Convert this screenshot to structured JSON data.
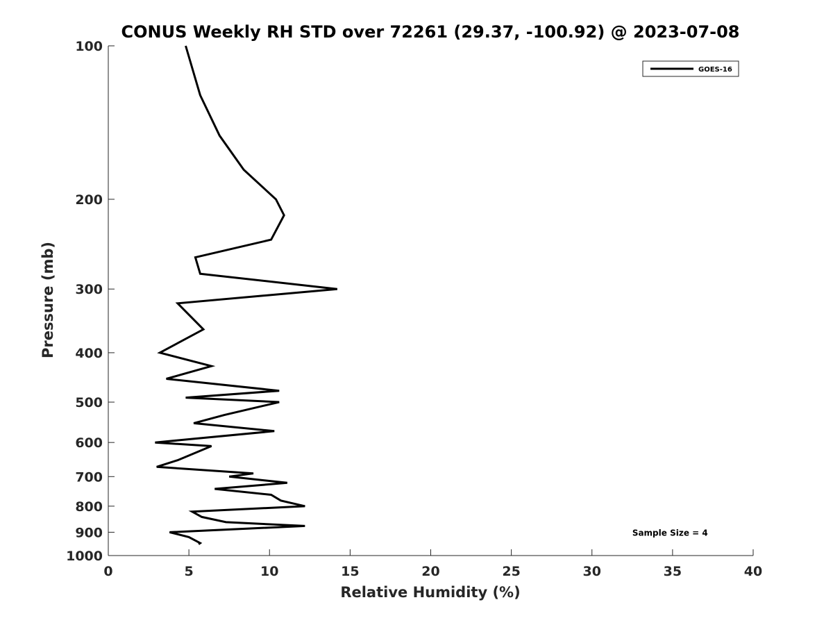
{
  "chart_data": {
    "type": "line",
    "title": "CONUS Weekly RH STD over 72261 (29.37, -100.92) @ 2023-07-08",
    "xlabel": "Relative Humidity (%)",
    "ylabel": "Pressure (mb)",
    "xlim": [
      0,
      40
    ],
    "ylim": [
      100,
      1000
    ],
    "y_scale": "log",
    "y_reversed": true,
    "x_ticks": [
      0,
      5,
      10,
      15,
      20,
      25,
      30,
      35,
      40
    ],
    "y_ticks": [
      100,
      200,
      300,
      400,
      500,
      600,
      700,
      800,
      900,
      1000
    ],
    "grid": false,
    "legend_position": "top-right",
    "series": [
      {
        "name": "GOES-16",
        "color": "#000000",
        "points": [
          {
            "x": 4.8,
            "y": 100
          },
          {
            "x": 5.7,
            "y": 125
          },
          {
            "x": 6.9,
            "y": 150
          },
          {
            "x": 8.4,
            "y": 175
          },
          {
            "x": 10.4,
            "y": 200
          },
          {
            "x": 10.9,
            "y": 215
          },
          {
            "x": 10.1,
            "y": 240
          },
          {
            "x": 5.4,
            "y": 260
          },
          {
            "x": 5.7,
            "y": 280
          },
          {
            "x": 14.2,
            "y": 300
          },
          {
            "x": 4.3,
            "y": 320
          },
          {
            "x": 5.9,
            "y": 360
          },
          {
            "x": 3.2,
            "y": 400
          },
          {
            "x": 6.4,
            "y": 425
          },
          {
            "x": 3.6,
            "y": 450
          },
          {
            "x": 10.6,
            "y": 475
          },
          {
            "x": 4.8,
            "y": 490
          },
          {
            "x": 10.6,
            "y": 500
          },
          {
            "x": 7.2,
            "y": 530
          },
          {
            "x": 5.3,
            "y": 550
          },
          {
            "x": 10.3,
            "y": 570
          },
          {
            "x": 2.9,
            "y": 600
          },
          {
            "x": 6.4,
            "y": 610
          },
          {
            "x": 4.3,
            "y": 650
          },
          {
            "x": 3.0,
            "y": 670
          },
          {
            "x": 9.0,
            "y": 690
          },
          {
            "x": 7.5,
            "y": 700
          },
          {
            "x": 11.1,
            "y": 720
          },
          {
            "x": 6.6,
            "y": 740
          },
          {
            "x": 10.1,
            "y": 760
          },
          {
            "x": 10.7,
            "y": 780
          },
          {
            "x": 12.2,
            "y": 800
          },
          {
            "x": 5.2,
            "y": 820
          },
          {
            "x": 5.8,
            "y": 840
          },
          {
            "x": 7.3,
            "y": 860
          },
          {
            "x": 12.2,
            "y": 875
          },
          {
            "x": 3.8,
            "y": 900
          },
          {
            "x": 5.0,
            "y": 920
          },
          {
            "x": 5.7,
            "y": 945
          },
          {
            "x": 5.6,
            "y": 950
          }
        ]
      }
    ],
    "annotations": [
      {
        "text": "Sample Size = 4",
        "x": 32.5,
        "y": 900
      }
    ]
  }
}
